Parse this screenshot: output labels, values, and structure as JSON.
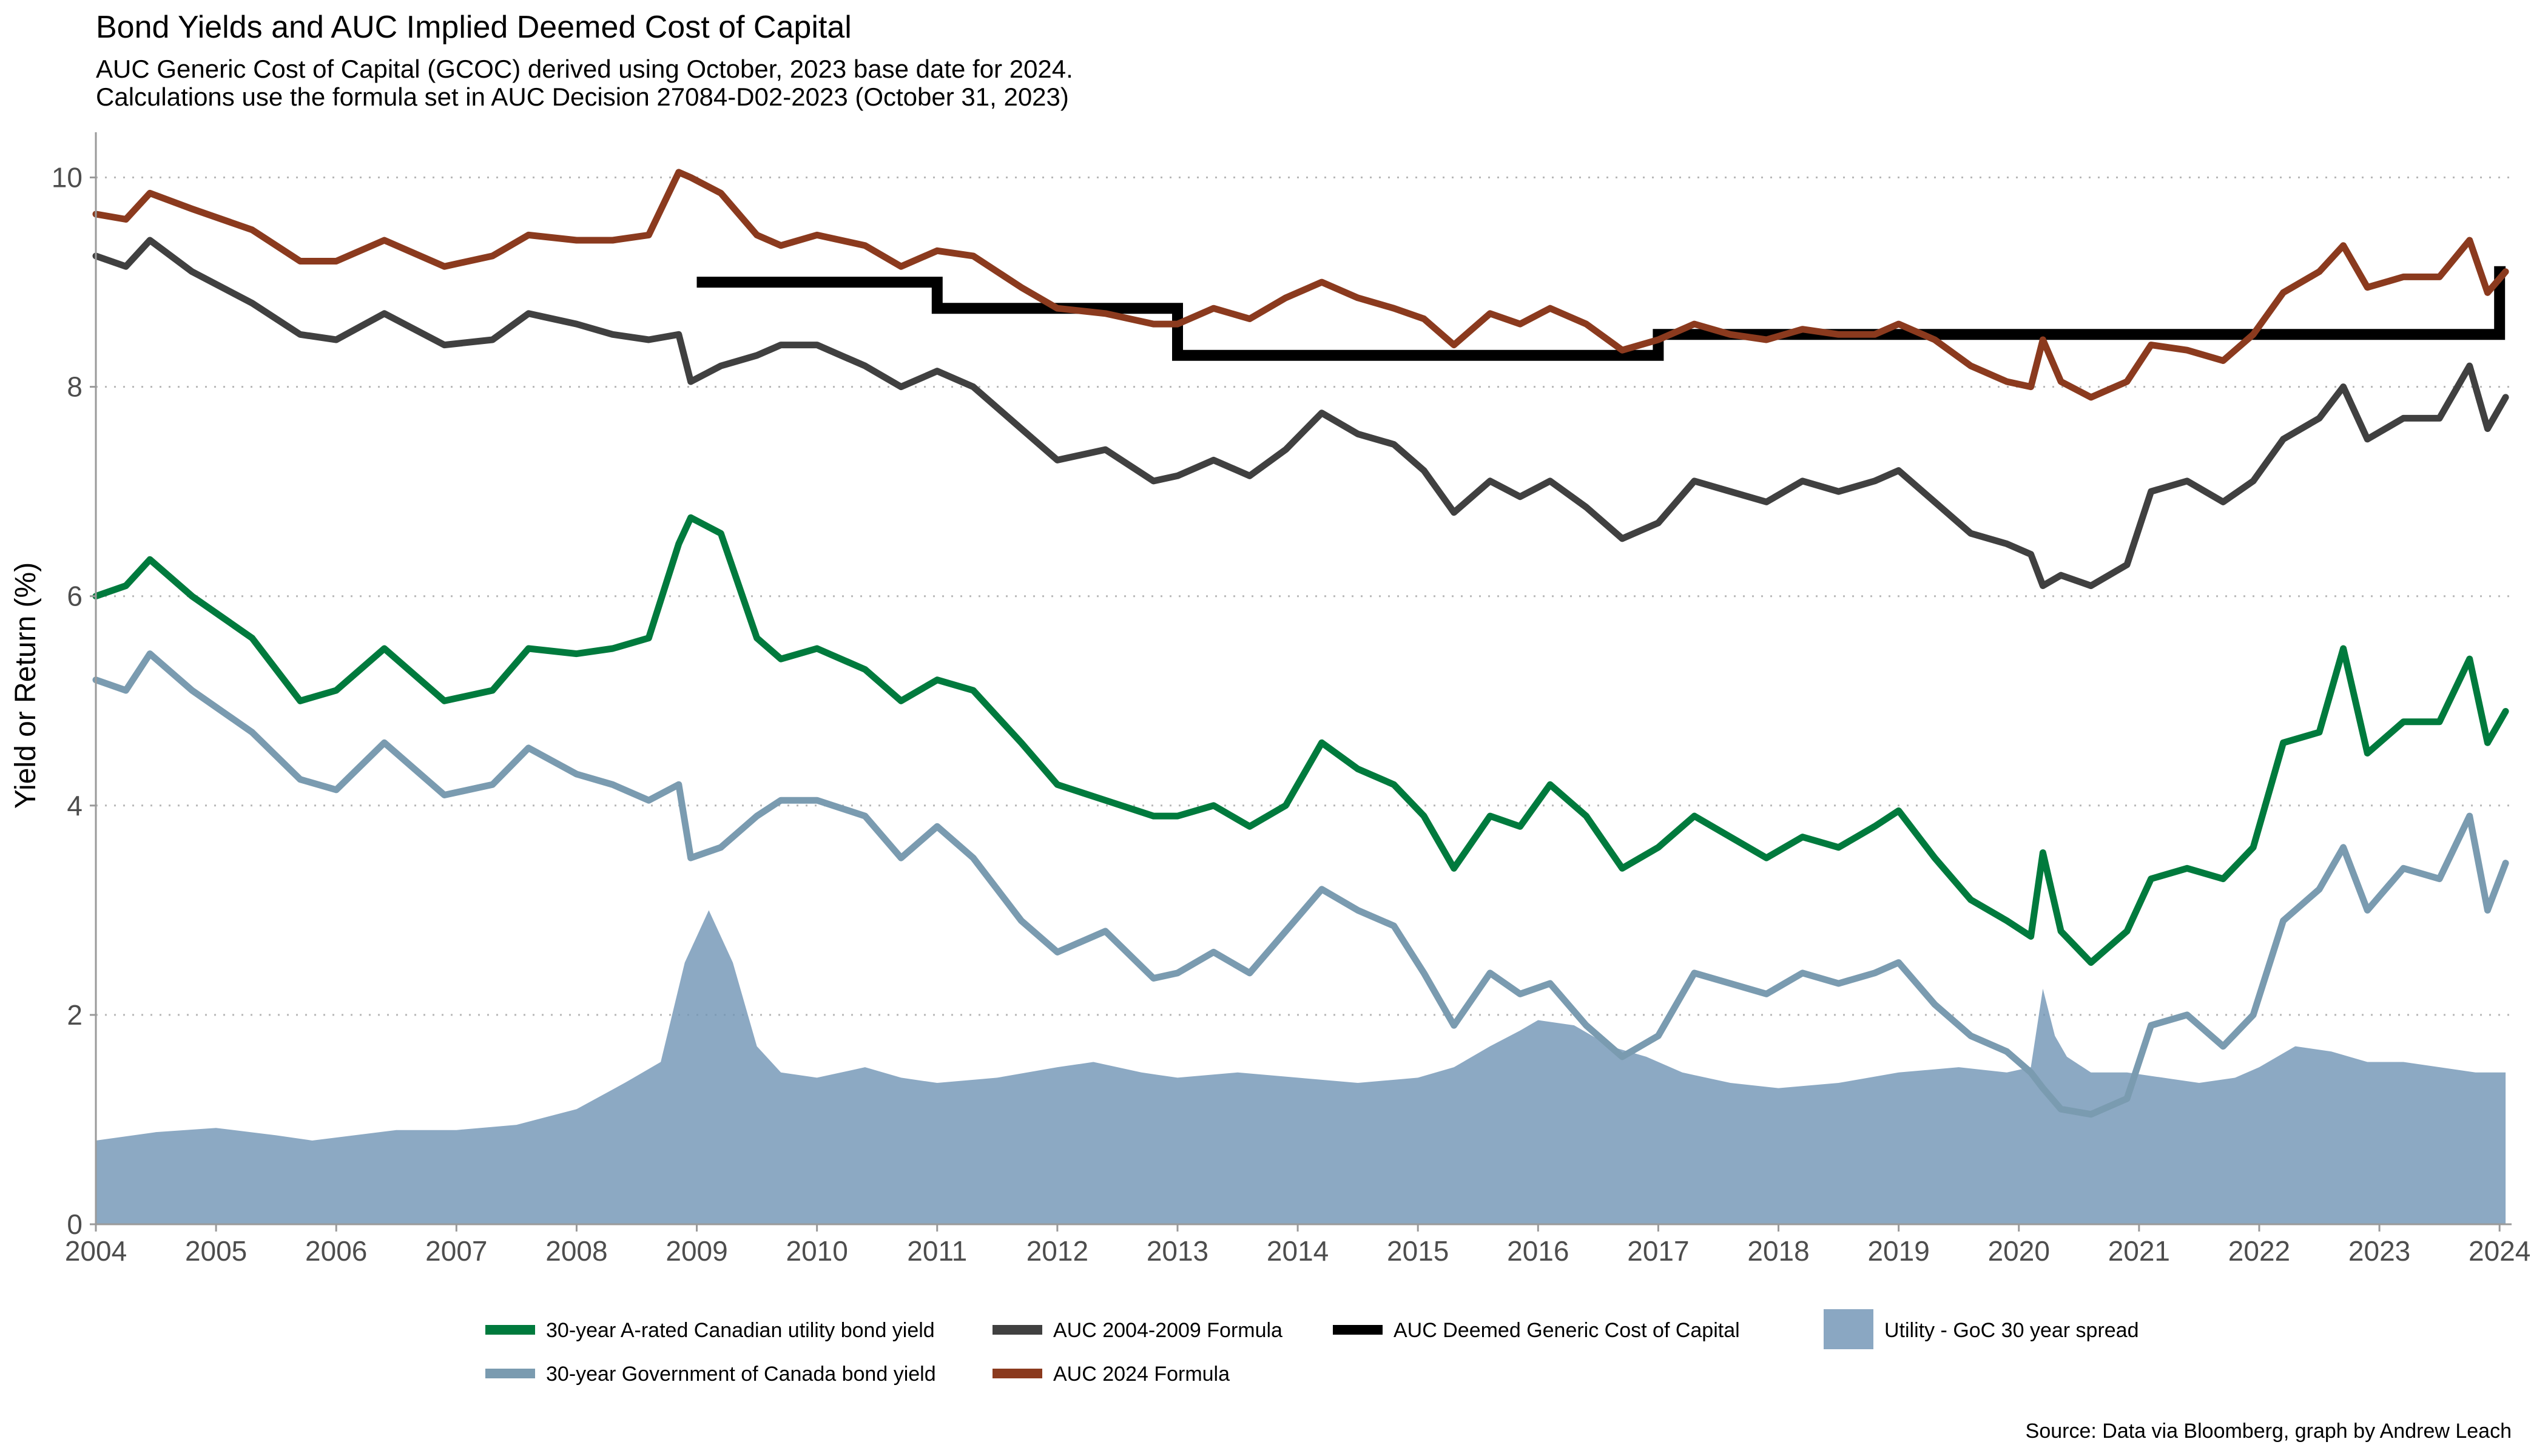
{
  "chart_data": {
    "type": "line",
    "title": "Bond Yields and AUC Implied Deemed Cost of Capital",
    "subtitle_lines": [
      "AUC Generic Cost of Capital (GCOC) derived using October, 2023 base date for 2024.",
      "Calculations use the formula set in AUC Decision 27084-D02-2023 (October 31, 2023)"
    ],
    "xlabel": "",
    "ylabel": "Yield or Return (%)",
    "caption": "Source: Data via Bloomberg, graph by Andrew Leach",
    "xlim": [
      2004.0,
      2024.1
    ],
    "ylim": [
      0,
      10.2
    ],
    "x_ticks": [
      2004,
      2005,
      2006,
      2007,
      2008,
      2009,
      2010,
      2011,
      2012,
      2013,
      2014,
      2015,
      2016,
      2017,
      2018,
      2019,
      2020,
      2021,
      2022,
      2023,
      2024
    ],
    "y_ticks": [
      0,
      2,
      4,
      6,
      8,
      10
    ],
    "grid": "horizontal dotted",
    "legend_position": "bottom",
    "series": [
      {
        "name": "30-year A-rated Canadian utility bond yield",
        "type": "line",
        "color": "#007a3d",
        "x": [
          2004.0,
          2004.25,
          2004.45,
          2004.8,
          2005.3,
          2005.7,
          2006.0,
          2006.4,
          2006.9,
          2007.3,
          2007.6,
          2008.0,
          2008.3,
          2008.6,
          2008.85,
          2008.95,
          2009.2,
          2009.5,
          2009.7,
          2010.0,
          2010.4,
          2010.7,
          2011.0,
          2011.3,
          2011.7,
          2012.0,
          2012.4,
          2012.8,
          2013.0,
          2013.3,
          2013.6,
          2013.9,
          2014.2,
          2014.5,
          2014.8,
          2015.05,
          2015.3,
          2015.6,
          2015.85,
          2016.1,
          2016.4,
          2016.7,
          2017.0,
          2017.3,
          2017.6,
          2017.9,
          2018.2,
          2018.5,
          2018.8,
          2019.0,
          2019.3,
          2019.6,
          2019.9,
          2020.1,
          2020.2,
          2020.35,
          2020.6,
          2020.9,
          2021.1,
          2021.4,
          2021.7,
          2021.95,
          2022.2,
          2022.5,
          2022.7,
          2022.9,
          2023.2,
          2023.5,
          2023.75,
          2023.9,
          2024.05
        ],
        "y": [
          6.0,
          6.1,
          6.35,
          6.0,
          5.6,
          5.0,
          5.1,
          5.5,
          5.0,
          5.1,
          5.5,
          5.45,
          5.5,
          5.6,
          6.5,
          6.75,
          6.6,
          5.6,
          5.4,
          5.5,
          5.3,
          5.0,
          5.2,
          5.1,
          4.6,
          4.2,
          4.05,
          3.9,
          3.9,
          4.0,
          3.8,
          4.0,
          4.6,
          4.35,
          4.2,
          3.9,
          3.4,
          3.9,
          3.8,
          4.2,
          3.9,
          3.4,
          3.6,
          3.9,
          3.7,
          3.5,
          3.7,
          3.6,
          3.8,
          3.95,
          3.5,
          3.1,
          2.9,
          2.75,
          3.55,
          2.8,
          2.5,
          2.8,
          3.3,
          3.4,
          3.3,
          3.6,
          4.6,
          4.7,
          5.5,
          4.5,
          4.8,
          4.8,
          5.4,
          4.6,
          4.9
        ]
      },
      {
        "name": "30-year Government of Canada bond yield",
        "type": "line",
        "color": "#7a9bb0",
        "x": [
          2004.0,
          2004.25,
          2004.45,
          2004.8,
          2005.3,
          2005.7,
          2006.0,
          2006.4,
          2006.9,
          2007.3,
          2007.6,
          2008.0,
          2008.3,
          2008.6,
          2008.85,
          2008.95,
          2009.2,
          2009.5,
          2009.7,
          2010.0,
          2010.4,
          2010.7,
          2011.0,
          2011.3,
          2011.7,
          2012.0,
          2012.4,
          2012.8,
          2013.0,
          2013.3,
          2013.6,
          2013.9,
          2014.2,
          2014.5,
          2014.8,
          2015.05,
          2015.3,
          2015.6,
          2015.85,
          2016.1,
          2016.4,
          2016.7,
          2017.0,
          2017.3,
          2017.6,
          2017.9,
          2018.2,
          2018.5,
          2018.8,
          2019.0,
          2019.3,
          2019.6,
          2019.9,
          2020.1,
          2020.2,
          2020.35,
          2020.6,
          2020.9,
          2021.1,
          2021.4,
          2021.7,
          2021.95,
          2022.2,
          2022.5,
          2022.7,
          2022.9,
          2023.2,
          2023.5,
          2023.75,
          2023.9,
          2024.05
        ],
        "y": [
          5.2,
          5.1,
          5.45,
          5.1,
          4.7,
          4.25,
          4.15,
          4.6,
          4.1,
          4.2,
          4.55,
          4.3,
          4.2,
          4.05,
          4.2,
          3.5,
          3.6,
          3.9,
          4.05,
          4.05,
          3.9,
          3.5,
          3.8,
          3.5,
          2.9,
          2.6,
          2.8,
          2.35,
          2.4,
          2.6,
          2.4,
          2.8,
          3.2,
          3.0,
          2.85,
          2.4,
          1.9,
          2.4,
          2.2,
          2.3,
          1.9,
          1.6,
          1.8,
          2.4,
          2.3,
          2.2,
          2.4,
          2.3,
          2.4,
          2.5,
          2.1,
          1.8,
          1.65,
          1.45,
          1.3,
          1.1,
          1.05,
          1.2,
          1.9,
          2.0,
          1.7,
          2.0,
          2.9,
          3.2,
          3.6,
          3.0,
          3.4,
          3.3,
          3.9,
          3.0,
          3.45
        ]
      },
      {
        "name": "AUC 2004-2009 Formula",
        "type": "line",
        "color": "#404040",
        "x": [
          2004.0,
          2004.25,
          2004.45,
          2004.8,
          2005.3,
          2005.7,
          2006.0,
          2006.4,
          2006.9,
          2007.3,
          2007.6,
          2008.0,
          2008.3,
          2008.6,
          2008.85,
          2008.95,
          2009.2,
          2009.5,
          2009.7,
          2010.0,
          2010.4,
          2010.7,
          2011.0,
          2011.3,
          2011.7,
          2012.0,
          2012.4,
          2012.8,
          2013.0,
          2013.3,
          2013.6,
          2013.9,
          2014.2,
          2014.5,
          2014.8,
          2015.05,
          2015.3,
          2015.6,
          2015.85,
          2016.1,
          2016.4,
          2016.7,
          2017.0,
          2017.3,
          2017.6,
          2017.9,
          2018.2,
          2018.5,
          2018.8,
          2019.0,
          2019.3,
          2019.6,
          2019.9,
          2020.1,
          2020.2,
          2020.35,
          2020.6,
          2020.9,
          2021.1,
          2021.4,
          2021.7,
          2021.95,
          2022.2,
          2022.5,
          2022.7,
          2022.9,
          2023.2,
          2023.5,
          2023.75,
          2023.9,
          2024.05
        ],
        "y": [
          9.25,
          9.15,
          9.4,
          9.1,
          8.8,
          8.5,
          8.45,
          8.7,
          8.4,
          8.45,
          8.7,
          8.6,
          8.5,
          8.45,
          8.5,
          8.05,
          8.2,
          8.3,
          8.4,
          8.4,
          8.2,
          8.0,
          8.15,
          8.0,
          7.6,
          7.3,
          7.4,
          7.1,
          7.15,
          7.3,
          7.15,
          7.4,
          7.75,
          7.55,
          7.45,
          7.2,
          6.8,
          7.1,
          6.95,
          7.1,
          6.85,
          6.55,
          6.7,
          7.1,
          7.0,
          6.9,
          7.1,
          7.0,
          7.1,
          7.2,
          6.9,
          6.6,
          6.5,
          6.4,
          6.1,
          6.2,
          6.1,
          6.3,
          7.0,
          7.1,
          6.9,
          7.1,
          7.5,
          7.7,
          8.0,
          7.5,
          7.7,
          7.7,
          8.2,
          7.6,
          7.9
        ]
      },
      {
        "name": "AUC 2024 Formula",
        "type": "line",
        "color": "#8b3a1e",
        "x": [
          2004.0,
          2004.25,
          2004.45,
          2004.8,
          2005.3,
          2005.7,
          2006.0,
          2006.4,
          2006.9,
          2007.3,
          2007.6,
          2008.0,
          2008.3,
          2008.6,
          2008.85,
          2008.95,
          2009.2,
          2009.5,
          2009.7,
          2010.0,
          2010.4,
          2010.7,
          2011.0,
          2011.3,
          2011.7,
          2012.0,
          2012.4,
          2012.8,
          2013.0,
          2013.3,
          2013.6,
          2013.9,
          2014.2,
          2014.5,
          2014.8,
          2015.05,
          2015.3,
          2015.6,
          2015.85,
          2016.1,
          2016.4,
          2016.7,
          2017.0,
          2017.3,
          2017.6,
          2017.9,
          2018.2,
          2018.5,
          2018.8,
          2019.0,
          2019.3,
          2019.6,
          2019.9,
          2020.1,
          2020.2,
          2020.35,
          2020.6,
          2020.9,
          2021.1,
          2021.4,
          2021.7,
          2021.95,
          2022.2,
          2022.5,
          2022.7,
          2022.9,
          2023.2,
          2023.5,
          2023.75,
          2023.9,
          2024.05
        ],
        "y": [
          9.65,
          9.6,
          9.85,
          9.7,
          9.5,
          9.2,
          9.2,
          9.4,
          9.15,
          9.25,
          9.45,
          9.4,
          9.4,
          9.45,
          10.05,
          10.0,
          9.85,
          9.45,
          9.35,
          9.45,
          9.35,
          9.15,
          9.3,
          9.25,
          8.95,
          8.75,
          8.7,
          8.6,
          8.6,
          8.75,
          8.65,
          8.85,
          9.0,
          8.85,
          8.75,
          8.65,
          8.4,
          8.7,
          8.6,
          8.75,
          8.6,
          8.35,
          8.45,
          8.6,
          8.5,
          8.45,
          8.55,
          8.5,
          8.5,
          8.6,
          8.45,
          8.2,
          8.05,
          8.0,
          8.45,
          8.05,
          7.9,
          8.05,
          8.4,
          8.35,
          8.25,
          8.5,
          8.9,
          9.1,
          9.35,
          8.95,
          9.05,
          9.05,
          9.4,
          8.9,
          9.1
        ]
      },
      {
        "name": "AUC Deemed Generic Cost of Capital",
        "type": "step",
        "color": "#000000",
        "x": [
          2004.0,
          2009.0,
          2009.0,
          2011.0,
          2011.0,
          2013.0,
          2013.0,
          2017.0,
          2017.0,
          2024.0,
          2024.0,
          2024.05
        ],
        "y": [
          null,
          null,
          9.0,
          9.0,
          8.75,
          8.75,
          8.3,
          8.3,
          8.5,
          8.5,
          9.1,
          9.1
        ]
      },
      {
        "name": "Utility - GoC 30 year spread",
        "type": "area",
        "color": "#6f94b4",
        "x": [
          2004.0,
          2004.5,
          2005.0,
          2005.5,
          2005.8,
          2006.5,
          2007.0,
          2007.5,
          2008.0,
          2008.4,
          2008.7,
          2008.9,
          2009.1,
          2009.3,
          2009.5,
          2009.7,
          2010.0,
          2010.4,
          2010.7,
          2011.0,
          2011.5,
          2012.0,
          2012.3,
          2012.7,
          2013.0,
          2013.5,
          2014.0,
          2014.5,
          2015.0,
          2015.3,
          2015.6,
          2015.85,
          2016.0,
          2016.3,
          2016.6,
          2016.9,
          2017.2,
          2017.6,
          2018.0,
          2018.5,
          2019.0,
          2019.5,
          2019.9,
          2020.1,
          2020.2,
          2020.3,
          2020.4,
          2020.6,
          2020.9,
          2021.2,
          2021.5,
          2021.8,
          2022.0,
          2022.3,
          2022.6,
          2022.9,
          2023.2,
          2023.5,
          2023.8,
          2024.05
        ],
        "y": [
          0.8,
          0.88,
          0.92,
          0.85,
          0.8,
          0.9,
          0.9,
          0.95,
          1.1,
          1.35,
          1.55,
          2.5,
          3.0,
          2.5,
          1.7,
          1.45,
          1.4,
          1.5,
          1.4,
          1.35,
          1.4,
          1.5,
          1.55,
          1.45,
          1.4,
          1.45,
          1.4,
          1.35,
          1.4,
          1.5,
          1.7,
          1.85,
          1.95,
          1.9,
          1.7,
          1.6,
          1.45,
          1.35,
          1.3,
          1.35,
          1.45,
          1.5,
          1.45,
          1.5,
          2.25,
          1.8,
          1.6,
          1.45,
          1.45,
          1.4,
          1.35,
          1.4,
          1.5,
          1.7,
          1.65,
          1.55,
          1.55,
          1.5,
          1.45,
          1.45
        ]
      }
    ],
    "legend": [
      {
        "label": "30-year A-rated Canadian utility bond yield",
        "color": "#007a3d",
        "kind": "line"
      },
      {
        "label": "AUC 2004-2009 Formula",
        "color": "#404040",
        "kind": "line"
      },
      {
        "label": "AUC Deemed Generic Cost of Capital",
        "color": "#000000",
        "kind": "line"
      },
      {
        "label": "Utility - GoC 30 year spread",
        "color": "#8aa7c2",
        "kind": "fill"
      },
      {
        "label": "30-year Government of Canada bond yield",
        "color": "#7a9bb0",
        "kind": "line"
      },
      {
        "label": "AUC 2024 Formula",
        "color": "#8b3a1e",
        "kind": "line"
      }
    ]
  }
}
